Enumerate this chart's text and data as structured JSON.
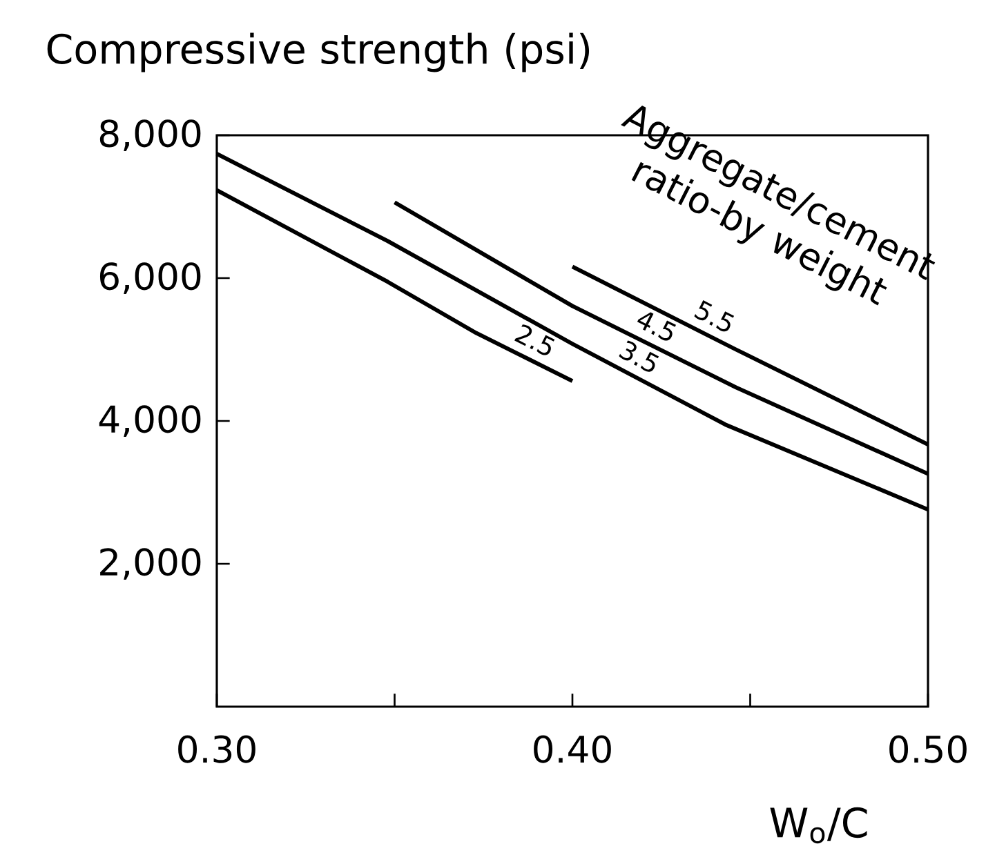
{
  "chart_data": {
    "type": "line",
    "ylabel": "Compressive strength (psi)",
    "xlabel": "W$_{o}$/C",
    "xlim": [
      0.3,
      0.5
    ],
    "ylim": [
      0,
      8000
    ],
    "xticks": [
      {
        "value": 0.3,
        "label": "0.30"
      },
      {
        "value": 0.35,
        "label": null
      },
      {
        "value": 0.4,
        "label": "0.40"
      },
      {
        "value": 0.45,
        "label": null
      },
      {
        "value": 0.5,
        "label": "0.50"
      }
    ],
    "yticks": [
      {
        "value": 2000,
        "label": "2,000"
      },
      {
        "value": 4000,
        "label": "4,000"
      },
      {
        "value": 6000,
        "label": "6,000"
      },
      {
        "value": 8000,
        "label": "8,000"
      }
    ],
    "annotations": [
      "Aggregate/cement ratio-by weight"
    ],
    "grid": false,
    "legend": false,
    "marker": "none",
    "line_style": "solid",
    "series": [
      {
        "name": "2.5",
        "color": "#000000",
        "x": [
          0.3,
          0.348,
          0.373,
          0.4
        ],
        "values": [
          7230,
          5950,
          5230,
          4560
        ]
      },
      {
        "name": "3.5",
        "color": "#000000",
        "x": [
          0.3,
          0.348,
          0.4,
          0.443,
          0.5
        ],
        "values": [
          7740,
          6520,
          5080,
          3950,
          2760
        ]
      },
      {
        "name": "4.5",
        "color": "#000000",
        "x": [
          0.35,
          0.4,
          0.446,
          0.5
        ],
        "values": [
          7060,
          5610,
          4470,
          3260
        ]
      },
      {
        "name": "5.5",
        "color": "#000000",
        "x": [
          0.4,
          0.446,
          0.5
        ],
        "values": [
          6160,
          5000,
          3670
        ]
      }
    ]
  }
}
